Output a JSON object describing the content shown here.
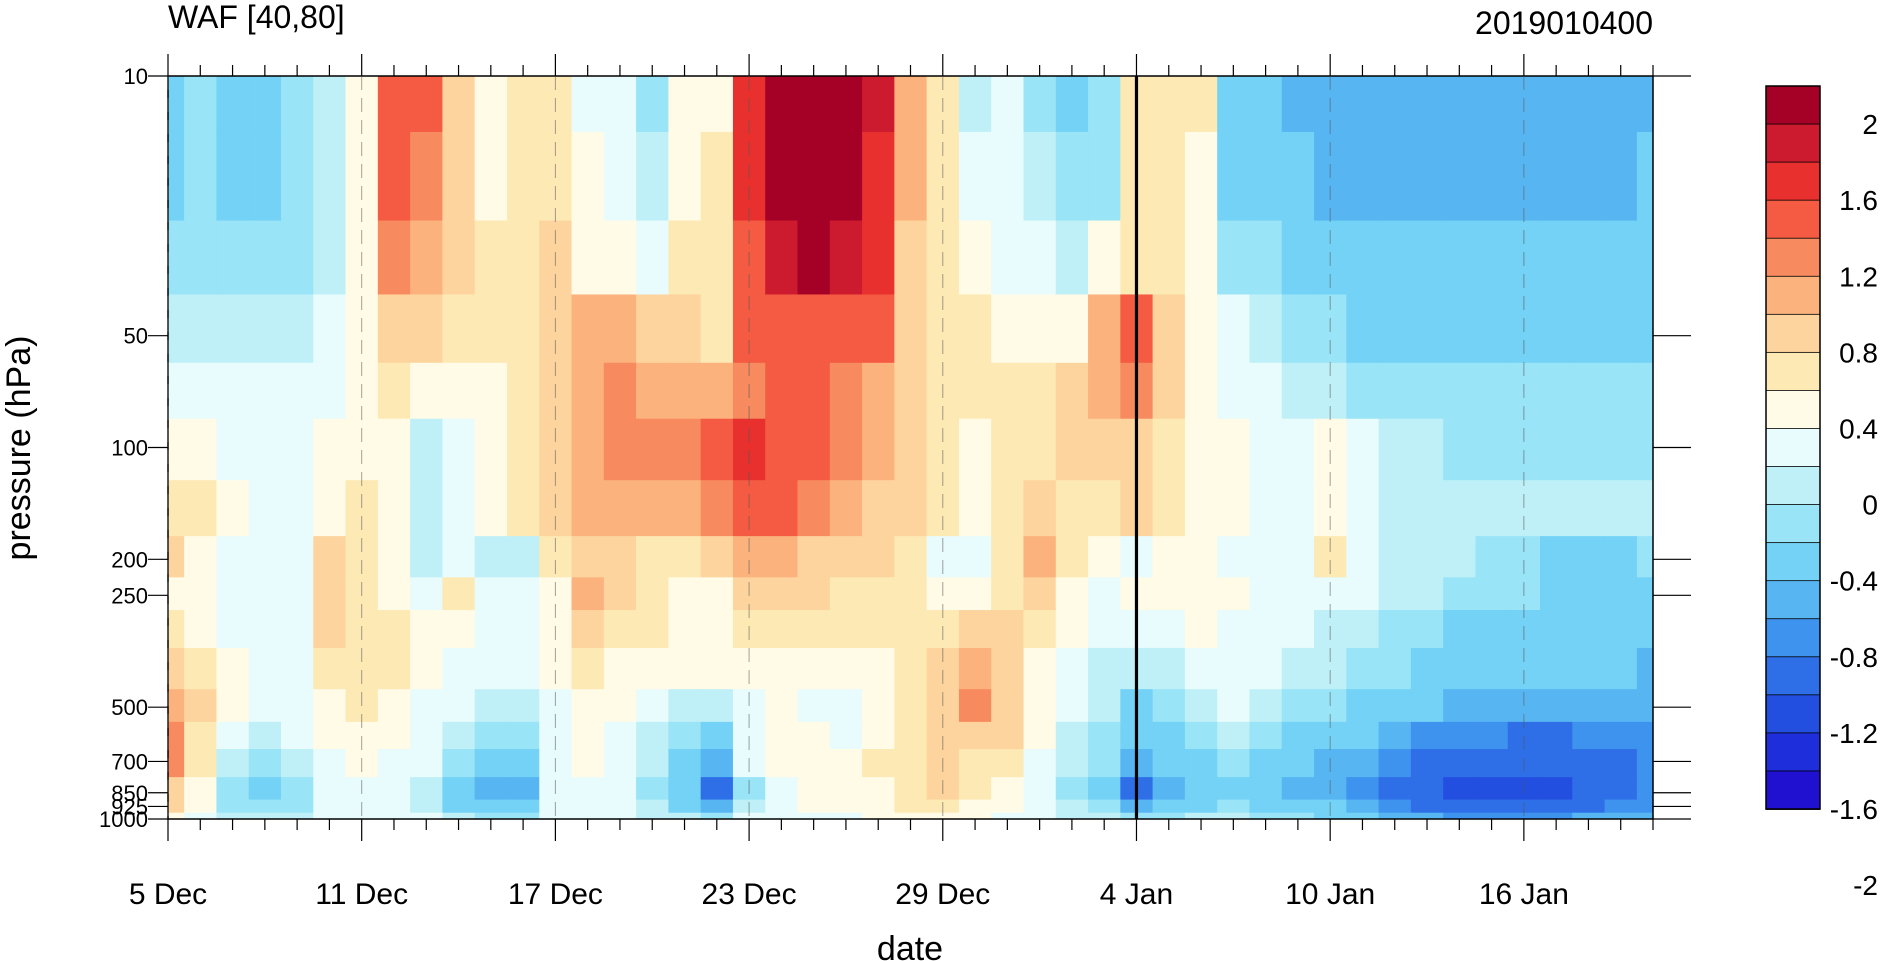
{
  "chart_data": {
    "type": "heatmap",
    "title": "WAF [40,80]",
    "subtitle": "2019010400",
    "xlabel": "date",
    "ylabel": "pressure (hPa)",
    "x_ticks": [
      "5 Dec",
      "11 Dec",
      "17 Dec",
      "23 Dec",
      "29 Dec",
      "4 Jan",
      "10 Jan",
      "16 Jan"
    ],
    "y_ticks": [
      "10",
      "50",
      "100",
      "200",
      "250",
      "500",
      "700",
      "850",
      "925",
      "1000"
    ],
    "y_scale": "log",
    "y_reversed": true,
    "x_range": [
      "5 Dec 2018",
      "20 Jan 2019"
    ],
    "y_range": [
      1000,
      10
    ],
    "marked_date": "4 Jan",
    "colorbar": {
      "labels": [
        "2",
        "1.6",
        "1.2",
        "0.8",
        "0.4",
        "0",
        "-0.4",
        "-0.8",
        "-1.2",
        "-1.6",
        "-2"
      ],
      "colors": [
        "#a50026",
        "#cc1a2e",
        "#e8312e",
        "#f45b42",
        "#f78a5e",
        "#fbb27d",
        "#fdd49e",
        "#fde9b4",
        "#fffbe6",
        "#e8fbfd",
        "#bff0f7",
        "#99e4f7",
        "#73d2f5",
        "#57b5f2",
        "#3e93ee",
        "#2e6fe8",
        "#234fe0",
        "#1f2edb",
        "#2010d0"
      ]
    },
    "pressure_levels": [
      10,
      20,
      30,
      50,
      70,
      100,
      150,
      200,
      250,
      300,
      400,
      500,
      600,
      700,
      850,
      925,
      1000
    ],
    "dates": [
      "5 Dec",
      "6 Dec",
      "7 Dec",
      "8 Dec",
      "9 Dec",
      "10 Dec",
      "11 Dec",
      "12 Dec",
      "13 Dec",
      "14 Dec",
      "15 Dec",
      "16 Dec",
      "17 Dec",
      "18 Dec",
      "19 Dec",
      "20 Dec",
      "21 Dec",
      "22 Dec",
      "23 Dec",
      "24 Dec",
      "25 Dec",
      "26 Dec",
      "27 Dec",
      "28 Dec",
      "29 Dec",
      "30 Dec",
      "31 Dec",
      "1 Jan",
      "2 Jan",
      "3 Jan",
      "4 Jan",
      "5 Jan",
      "6 Jan",
      "7 Jan",
      "8 Jan",
      "9 Jan",
      "10 Jan",
      "11 Jan",
      "12 Jan",
      "13 Jan",
      "14 Jan",
      "15 Jan",
      "16 Jan",
      "17 Jan",
      "18 Jan",
      "19 Jan",
      "20 Jan"
    ],
    "values": [
      [
        -0.6,
        -0.5,
        -0.6,
        -0.7,
        -0.5,
        -0.3,
        0.3,
        1.4,
        1.3,
        0.6,
        0.3,
        0.4,
        0.4,
        0.1,
        -0.1,
        -0.5,
        0.2,
        0.3,
        1.6,
        2.2,
        2.4,
        2.2,
        1.8,
        0.9,
        0.4,
        -0.2,
        -0.1,
        -0.4,
        -0.6,
        -0.5,
        0.4,
        0.5,
        0.4,
        -0.7,
        -0.8,
        -0.9,
        -1.0,
        -1.0,
        -1.0,
        -1.0,
        -1.0,
        -1.0,
        -1.0,
        -1.0,
        -1.0,
        -1.0,
        -0.9
      ],
      [
        -0.6,
        -0.5,
        -0.6,
        -0.6,
        -0.5,
        -0.3,
        0.3,
        1.3,
        1.2,
        0.6,
        0.3,
        0.4,
        0.5,
        0.2,
        0.0,
        -0.3,
        0.3,
        0.4,
        1.6,
        2.1,
        2.3,
        2.1,
        1.7,
        0.9,
        0.4,
        0.0,
        0.0,
        -0.3,
        -0.5,
        -0.4,
        0.4,
        0.5,
        0.3,
        -0.6,
        -0.7,
        -0.8,
        -0.9,
        -0.9,
        -1.0,
        -1.0,
        -0.9,
        -0.9,
        -0.9,
        -0.9,
        -0.9,
        -0.9,
        -0.8
      ],
      [
        -0.5,
        -0.5,
        -0.5,
        -0.5,
        -0.4,
        -0.2,
        0.3,
        1.1,
        1.0,
        0.6,
        0.4,
        0.4,
        0.6,
        0.3,
        0.2,
        0.1,
        0.4,
        0.5,
        1.5,
        1.9,
        2.1,
        1.9,
        1.6,
        0.8,
        0.5,
        0.2,
        0.1,
        0.0,
        -0.2,
        0.2,
        0.5,
        0.5,
        0.3,
        -0.4,
        -0.5,
        -0.6,
        -0.8,
        -0.8,
        -0.8,
        -0.8,
        -0.8,
        -0.8,
        -0.8,
        -0.8,
        -0.7,
        -0.7,
        -0.7
      ],
      [
        -0.3,
        -0.3,
        -0.3,
        -0.3,
        -0.2,
        0.0,
        0.3,
        0.7,
        0.7,
        0.5,
        0.4,
        0.4,
        0.6,
        1.0,
        1.0,
        0.8,
        0.6,
        0.5,
        1.3,
        1.5,
        1.5,
        1.4,
        1.3,
        0.7,
        0.5,
        0.4,
        0.3,
        0.2,
        0.3,
        1.0,
        1.3,
        0.6,
        0.3,
        -0.1,
        -0.3,
        -0.4,
        -0.5,
        -0.6,
        -0.6,
        -0.6,
        -0.7,
        -0.7,
        -0.7,
        -0.6,
        -0.6,
        -0.6,
        -0.6
      ],
      [
        -0.1,
        0.0,
        -0.1,
        -0.1,
        0.0,
        0.1,
        0.3,
        0.5,
        0.3,
        0.2,
        0.3,
        0.4,
        0.7,
        1.0,
        1.1,
        1.0,
        0.9,
        1.0,
        1.2,
        1.3,
        1.3,
        1.2,
        1.0,
        0.7,
        0.5,
        0.4,
        0.4,
        0.4,
        0.6,
        1.0,
        1.1,
        0.6,
        0.3,
        0.1,
        -0.1,
        -0.2,
        -0.3,
        -0.4,
        -0.4,
        -0.5,
        -0.5,
        -0.5,
        -0.5,
        -0.5,
        -0.5,
        -0.5,
        -0.5
      ],
      [
        0.2,
        0.3,
        0.1,
        0.1,
        0.1,
        0.2,
        0.3,
        0.3,
        -0.2,
        -0.1,
        0.2,
        0.4,
        0.7,
        1.0,
        1.1,
        1.1,
        1.1,
        1.3,
        1.6,
        1.5,
        1.3,
        1.1,
        0.9,
        0.6,
        0.5,
        0.3,
        0.4,
        0.5,
        0.6,
        0.8,
        0.8,
        0.5,
        0.3,
        0.2,
        0.1,
        0.1,
        0.3,
        0.0,
        -0.3,
        -0.3,
        -0.4,
        -0.4,
        -0.4,
        -0.4,
        -0.4,
        -0.4,
        -0.4
      ],
      [
        0.4,
        0.4,
        0.2,
        0.1,
        0.1,
        0.3,
        0.4,
        0.3,
        -0.2,
        -0.1,
        0.2,
        0.4,
        0.6,
        0.9,
        1.0,
        1.0,
        1.0,
        1.2,
        1.5,
        1.3,
        1.1,
        0.9,
        0.8,
        0.6,
        0.4,
        0.3,
        0.5,
        0.8,
        0.5,
        0.5,
        0.6,
        0.4,
        0.3,
        0.2,
        0.1,
        0.1,
        0.2,
        0.0,
        -0.2,
        -0.3,
        -0.3,
        -0.3,
        -0.3,
        -0.3,
        -0.3,
        -0.3,
        -0.3
      ],
      [
        0.6,
        0.3,
        0.1,
        -0.1,
        0.0,
        0.6,
        0.4,
        0.3,
        -0.2,
        0.0,
        -0.2,
        -0.3,
        0.4,
        0.7,
        0.6,
        0.5,
        0.5,
        0.6,
        1.0,
        0.9,
        0.8,
        0.7,
        0.6,
        0.5,
        0.1,
        -0.1,
        0.5,
        0.9,
        0.4,
        0.2,
        -0.1,
        0.3,
        0.3,
        0.1,
        0.0,
        0.0,
        0.4,
        0.0,
        -0.2,
        -0.3,
        -0.3,
        -0.4,
        -0.5,
        -0.6,
        -0.7,
        -0.6,
        -0.5
      ],
      [
        0.3,
        0.2,
        0.0,
        -0.1,
        0.0,
        0.8,
        0.5,
        0.3,
        0.1,
        0.4,
        0.1,
        -0.1,
        0.3,
        0.9,
        0.6,
        0.4,
        0.3,
        0.3,
        0.6,
        0.7,
        0.6,
        0.5,
        0.5,
        0.4,
        0.3,
        0.2,
        0.5,
        0.6,
        0.3,
        0.0,
        0.3,
        0.3,
        0.3,
        0.2,
        0.1,
        0.0,
        0.0,
        -0.1,
        -0.2,
        -0.3,
        -0.4,
        -0.5,
        -0.5,
        -0.6,
        -0.7,
        -0.7,
        -0.6
      ],
      [
        0.4,
        0.3,
        0.1,
        0.0,
        0.1,
        0.6,
        0.5,
        0.4,
        0.2,
        0.3,
        0.1,
        0.0,
        0.2,
        0.6,
        0.5,
        0.4,
        0.3,
        0.3,
        0.4,
        0.5,
        0.5,
        0.4,
        0.4,
        0.4,
        0.5,
        0.6,
        0.6,
        0.4,
        0.2,
        0.0,
        0.0,
        0.1,
        0.2,
        0.1,
        0.0,
        -0.1,
        -0.2,
        -0.3,
        -0.4,
        -0.5,
        -0.6,
        -0.7,
        -0.7,
        -0.7,
        -0.7,
        -0.7,
        -0.7
      ],
      [
        0.7,
        0.5,
        0.2,
        0.0,
        0.1,
        0.4,
        0.5,
        0.4,
        0.3,
        0.1,
        0.0,
        -0.1,
        0.2,
        0.4,
        0.3,
        0.2,
        0.2,
        0.2,
        0.2,
        0.3,
        0.3,
        0.2,
        0.3,
        0.4,
        0.6,
        0.9,
        0.8,
        0.3,
        0.0,
        -0.2,
        -0.3,
        -0.2,
        0.0,
        0.0,
        -0.1,
        -0.2,
        -0.3,
        -0.4,
        -0.5,
        -0.6,
        -0.7,
        -0.8,
        -0.8,
        -0.8,
        -0.8,
        -0.8,
        -0.9
      ],
      [
        1.0,
        0.6,
        0.2,
        -0.1,
        0.0,
        0.3,
        0.4,
        0.3,
        0.1,
        -0.1,
        -0.2,
        -0.3,
        0.1,
        0.3,
        0.2,
        0.0,
        -0.2,
        -0.3,
        0.1,
        0.2,
        0.1,
        0.0,
        0.2,
        0.4,
        0.7,
        1.2,
        0.8,
        0.3,
        -0.1,
        -0.3,
        -0.6,
        -0.5,
        -0.2,
        -0.1,
        -0.3,
        -0.4,
        -0.5,
        -0.6,
        -0.7,
        -0.8,
        -0.9,
        -0.9,
        -1.0,
        -1.0,
        -1.0,
        -1.0,
        -1.0
      ],
      [
        1.1,
        0.5,
        0.1,
        -0.2,
        -0.1,
        0.2,
        0.3,
        0.2,
        0.0,
        -0.3,
        -0.4,
        -0.5,
        0.1,
        0.2,
        0.1,
        -0.2,
        -0.4,
        -0.6,
        0.0,
        0.2,
        0.2,
        0.1,
        0.2,
        0.4,
        0.6,
        0.8,
        0.6,
        0.2,
        -0.2,
        -0.4,
        -0.8,
        -0.7,
        -0.4,
        -0.3,
        -0.5,
        -0.6,
        -0.7,
        -0.8,
        -1.0,
        -1.1,
        -1.2,
        -1.2,
        -1.3,
        -1.3,
        -1.2,
        -1.2,
        -1.1
      ],
      [
        1.2,
        0.4,
        -0.2,
        -0.4,
        -0.3,
        0.1,
        0.2,
        0.1,
        -0.1,
        -0.5,
        -0.6,
        -0.6,
        0.0,
        0.2,
        0.1,
        -0.3,
        -0.6,
        -0.9,
        -0.1,
        0.2,
        0.3,
        0.3,
        0.4,
        0.5,
        0.6,
        0.5,
        0.4,
        0.1,
        -0.3,
        -0.5,
        -1.0,
        -0.8,
        -0.6,
        -0.5,
        -0.7,
        -0.8,
        -0.9,
        -1.0,
        -1.2,
        -1.3,
        -1.4,
        -1.4,
        -1.5,
        -1.5,
        -1.4,
        -1.3,
        -1.2
      ],
      [
        0.8,
        0.3,
        -0.5,
        -0.8,
        -0.5,
        0.0,
        0.1,
        0.0,
        -0.2,
        -0.8,
        -1.0,
        -0.9,
        -0.1,
        0.1,
        0.0,
        -0.4,
        -0.8,
        -1.3,
        -0.4,
        0.1,
        0.2,
        0.2,
        0.3,
        0.5,
        0.6,
        0.4,
        0.2,
        0.0,
        -0.4,
        -0.6,
        -1.3,
        -0.9,
        -0.7,
        -0.6,
        -0.8,
        -0.9,
        -1.0,
        -1.2,
        -1.4,
        -1.5,
        -1.6,
        -1.6,
        -1.7,
        -1.6,
        -1.5,
        -1.4,
        -1.2
      ],
      [
        0.6,
        0.2,
        -0.4,
        -0.5,
        -0.4,
        0.0,
        0.1,
        0.0,
        -0.2,
        -0.6,
        -0.8,
        -0.7,
        -0.1,
        0.1,
        0.0,
        -0.3,
        -0.6,
        -0.9,
        -0.3,
        0.1,
        0.2,
        0.2,
        0.3,
        0.4,
        0.5,
        0.3,
        0.2,
        0.0,
        -0.3,
        -0.5,
        -0.9,
        -0.7,
        -0.6,
        -0.5,
        -0.6,
        -0.7,
        -0.8,
        -1.0,
        -1.2,
        -1.3,
        -1.4,
        -1.4,
        -1.5,
        -1.4,
        -1.3,
        -1.2,
        -1.1
      ],
      [
        0.3,
        0.1,
        -0.2,
        -0.3,
        -0.2,
        0.0,
        0.1,
        0.0,
        -0.1,
        -0.3,
        -0.4,
        -0.4,
        0.0,
        0.1,
        0.0,
        -0.2,
        -0.3,
        -0.5,
        -0.1,
        0.1,
        0.1,
        0.1,
        0.2,
        0.3,
        0.3,
        0.2,
        0.1,
        0.0,
        -0.2,
        -0.3,
        -0.5,
        -0.4,
        -0.3,
        -0.3,
        -0.4,
        -0.5,
        -0.6,
        -0.7,
        -0.9,
        -1.0,
        -1.1,
        -1.1,
        -1.2,
        -1.1,
        -1.0,
        -1.0,
        -0.9
      ]
    ]
  }
}
